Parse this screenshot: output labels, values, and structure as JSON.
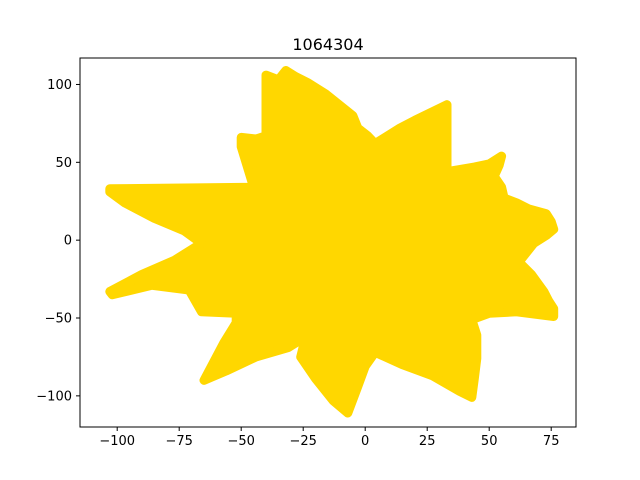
{
  "chart_data": {
    "type": "scatter",
    "title": "1064304",
    "xlabel": "",
    "ylabel": "",
    "xlim": [
      -115,
      85
    ],
    "ylim": [
      -120,
      117
    ],
    "xticks": [
      -100,
      -75,
      -50,
      -25,
      0,
      25,
      50,
      75
    ],
    "yticks": [
      -100,
      -50,
      0,
      50,
      100
    ],
    "grid": false,
    "legend": "none",
    "fill_color": "#FFD700",
    "series": [
      {
        "name": "",
        "color": "#FFD700",
        "outline": [
          [
            -103,
            31
          ],
          [
            -103,
            33
          ],
          [
            -45,
            34
          ],
          [
            -50,
            60
          ],
          [
            -50,
            66
          ],
          [
            -44,
            65
          ],
          [
            -40,
            67
          ],
          [
            -40,
            106
          ],
          [
            -35,
            103
          ],
          [
            -32,
            109
          ],
          [
            -28,
            105
          ],
          [
            -23,
            101
          ],
          [
            -16,
            94
          ],
          [
            -5,
            80
          ],
          [
            -3,
            72
          ],
          [
            1,
            67
          ],
          [
            4,
            62
          ],
          [
            14,
            72
          ],
          [
            20,
            77
          ],
          [
            33,
            87
          ],
          [
            33,
            44
          ],
          [
            44,
            47
          ],
          [
            50,
            49
          ],
          [
            55,
            54
          ],
          [
            54,
            48
          ],
          [
            52,
            41
          ],
          [
            55,
            34
          ],
          [
            56,
            27
          ],
          [
            61,
            24
          ],
          [
            66,
            20
          ],
          [
            73,
            17
          ],
          [
            75,
            12
          ],
          [
            76,
            7
          ],
          [
            73,
            3
          ],
          [
            68,
            -2
          ],
          [
            62,
            -14
          ],
          [
            67,
            -22
          ],
          [
            72,
            -33
          ],
          [
            74,
            -39
          ],
          [
            76,
            -44
          ],
          [
            76,
            -49
          ],
          [
            61,
            -46
          ],
          [
            50,
            -47
          ],
          [
            43,
            -51
          ],
          [
            45,
            -61
          ],
          [
            45,
            -76
          ],
          [
            44,
            -89
          ],
          [
            43,
            -101
          ],
          [
            38,
            -97
          ],
          [
            27,
            -87
          ],
          [
            15,
            -80
          ],
          [
            4,
            -72
          ],
          [
            0,
            -81
          ],
          [
            -3,
            -94
          ],
          [
            -7,
            -111
          ],
          [
            -13,
            -103
          ],
          [
            -20,
            -89
          ],
          [
            -26,
            -75
          ],
          [
            -24,
            -62
          ],
          [
            -31,
            -69
          ],
          [
            -44,
            -75
          ],
          [
            -56,
            -84
          ],
          [
            -65,
            -90
          ],
          [
            -57,
            -66
          ],
          [
            -52,
            -53
          ],
          [
            -52,
            -47
          ],
          [
            -66,
            -46
          ],
          [
            -71,
            -32
          ],
          [
            -86,
            -29
          ],
          [
            -102,
            -35
          ],
          [
            -103,
            -33
          ],
          [
            -90,
            -22
          ],
          [
            -77,
            -13
          ],
          [
            -66,
            -2
          ],
          [
            -73,
            6
          ],
          [
            -85,
            14
          ],
          [
            -97,
            24
          ]
        ]
      }
    ]
  }
}
